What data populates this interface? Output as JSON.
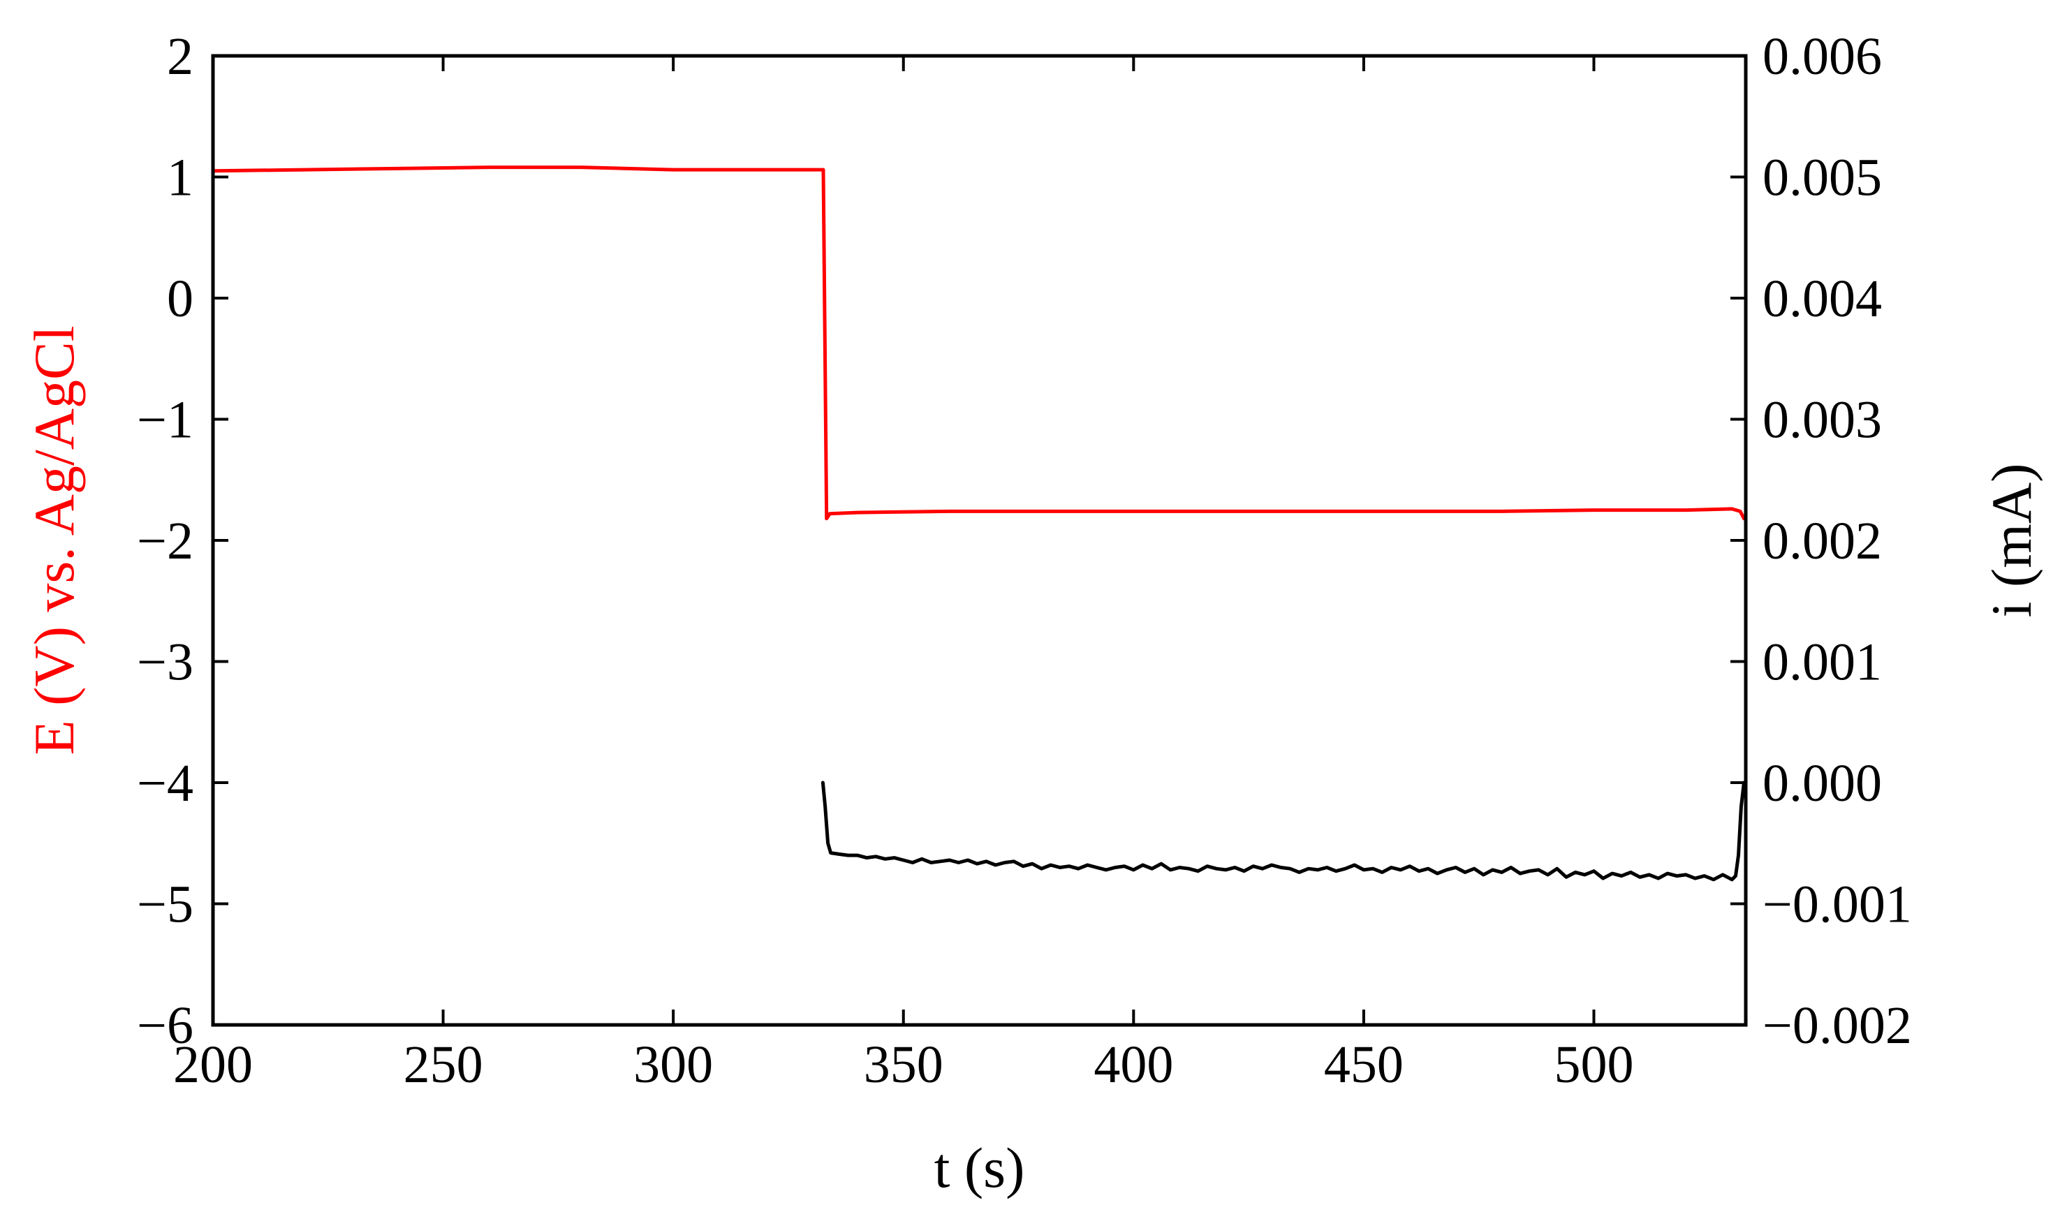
{
  "chart_data": {
    "type": "line",
    "title": "",
    "xlabel": "t (s)",
    "ylabel_left": "E (V) vs. Ag/AgCl",
    "ylabel_right": "i (mA)",
    "xlim": [
      200,
      533
    ],
    "ylim_left": [
      -6,
      2
    ],
    "ylim_right": [
      -0.002,
      0.006
    ],
    "x_ticks": [
      200,
      250,
      300,
      350,
      400,
      450,
      500
    ],
    "y_left_ticks": [
      2,
      1,
      0,
      -1,
      -2,
      -3,
      -4,
      -5,
      -6
    ],
    "y_left_tick_labels": [
      "2",
      "1",
      "0",
      "−1",
      "−2",
      "−3",
      "−4",
      "−5",
      "−6"
    ],
    "y_right_ticks": [
      0.006,
      0.005,
      0.004,
      0.003,
      0.002,
      0.001,
      0.0,
      -0.001,
      -0.002
    ],
    "y_right_tick_labels": [
      "0.006",
      "0.005",
      "0.004",
      "0.003",
      "0.002",
      "0.001",
      "0.000",
      "−0.001",
      "−0.002"
    ],
    "grid": false,
    "legend": "none",
    "colors": {
      "potential": "#ff0000",
      "current": "#000000",
      "left_axis_title": "#ff0000",
      "right_axis_title": "#000000"
    },
    "series": [
      {
        "axis": "left",
        "color": "#ff0000",
        "x": [
          200,
          220,
          240,
          260,
          280,
          300,
          320,
          332.6,
          333.3,
          334,
          340,
          360,
          380,
          400,
          420,
          440,
          460,
          480,
          500,
          520,
          530,
          531.8,
          532.6
        ],
        "y": [
          1.05,
          1.06,
          1.07,
          1.08,
          1.08,
          1.06,
          1.06,
          1.06,
          -1.82,
          -1.78,
          -1.77,
          -1.76,
          -1.76,
          -1.76,
          -1.76,
          -1.76,
          -1.76,
          -1.76,
          -1.75,
          -1.75,
          -1.74,
          -1.76,
          -1.82
        ]
      },
      {
        "axis": "right",
        "color": "#000000",
        "x": [
          332.5,
          333,
          333.6,
          334.2,
          336,
          338,
          340,
          342,
          344,
          346,
          348,
          350,
          352,
          354,
          356,
          358,
          360,
          362,
          364,
          366,
          368,
          370,
          372,
          374,
          376,
          378,
          380,
          382,
          384,
          386,
          388,
          390,
          392,
          394,
          396,
          398,
          400,
          402,
          404,
          406,
          408,
          410,
          412,
          414,
          416,
          418,
          420,
          422,
          424,
          426,
          428,
          430,
          432,
          434,
          436,
          438,
          440,
          442,
          444,
          446,
          448,
          450,
          452,
          454,
          456,
          458,
          460,
          462,
          464,
          466,
          468,
          470,
          472,
          474,
          476,
          478,
          480,
          482,
          484,
          486,
          488,
          490,
          492,
          494,
          496,
          498,
          500,
          502,
          504,
          506,
          508,
          510,
          512,
          514,
          516,
          518,
          520,
          522,
          524,
          526,
          528,
          529,
          530,
          530.8,
          531.4,
          532,
          532.6
        ],
        "y": [
          0.0,
          -0.0002,
          -0.0005,
          -0.00058,
          -0.00059,
          -0.0006,
          -0.0006,
          -0.00062,
          -0.00061,
          -0.00063,
          -0.00062,
          -0.00064,
          -0.00066,
          -0.00063,
          -0.00066,
          -0.00065,
          -0.00064,
          -0.00066,
          -0.00064,
          -0.00067,
          -0.00065,
          -0.00068,
          -0.00066,
          -0.00065,
          -0.00069,
          -0.00067,
          -0.00071,
          -0.00068,
          -0.0007,
          -0.00069,
          -0.00071,
          -0.00068,
          -0.0007,
          -0.00072,
          -0.0007,
          -0.00069,
          -0.00072,
          -0.00068,
          -0.00071,
          -0.00067,
          -0.00072,
          -0.0007,
          -0.00071,
          -0.00073,
          -0.00069,
          -0.00071,
          -0.00072,
          -0.0007,
          -0.00073,
          -0.00069,
          -0.00071,
          -0.00068,
          -0.0007,
          -0.00071,
          -0.00074,
          -0.00071,
          -0.00072,
          -0.0007,
          -0.00073,
          -0.00071,
          -0.00068,
          -0.00072,
          -0.00071,
          -0.00074,
          -0.0007,
          -0.00072,
          -0.00069,
          -0.00073,
          -0.00071,
          -0.00075,
          -0.00072,
          -0.0007,
          -0.00074,
          -0.00071,
          -0.00076,
          -0.00072,
          -0.00074,
          -0.0007,
          -0.00075,
          -0.00073,
          -0.00072,
          -0.00076,
          -0.00071,
          -0.00078,
          -0.00074,
          -0.00076,
          -0.00073,
          -0.00079,
          -0.00075,
          -0.00077,
          -0.00074,
          -0.00078,
          -0.00076,
          -0.00079,
          -0.00075,
          -0.00077,
          -0.00076,
          -0.00079,
          -0.00077,
          -0.0008,
          -0.00076,
          -0.00078,
          -0.0008,
          -0.00077,
          -0.0006,
          -0.0002,
          0.0
        ]
      }
    ]
  }
}
